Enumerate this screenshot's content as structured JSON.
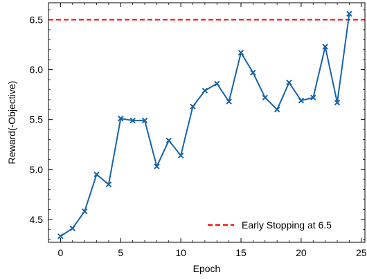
{
  "chart_data": {
    "type": "line",
    "xlabel": "Epoch",
    "ylabel": "Reward(-Objective)",
    "xlim": [
      -1,
      25.3
    ],
    "ylim": [
      4.27,
      6.67
    ],
    "xticks": [
      0,
      5,
      10,
      15,
      20,
      25
    ],
    "xtick_labels": [
      "0",
      "5",
      "10",
      "15",
      "20",
      "25"
    ],
    "yticks": [
      4.5,
      5.0,
      5.5,
      6.0,
      6.5
    ],
    "ytick_labels": [
      "4.5",
      "5.0",
      "5.5",
      "6.0",
      "6.5"
    ],
    "grid": false,
    "legend_position": "bottom-right",
    "series": [
      {
        "x": [
          0,
          1,
          2,
          3,
          4,
          5,
          6,
          7,
          8,
          9,
          10,
          11,
          12,
          13,
          14,
          15,
          16,
          17,
          18,
          19,
          20,
          21,
          22,
          23,
          24
        ],
        "values": [
          4.33,
          4.41,
          4.58,
          4.95,
          4.85,
          5.51,
          5.49,
          5.49,
          5.03,
          5.29,
          5.14,
          5.63,
          5.79,
          5.86,
          5.68,
          6.17,
          5.97,
          5.72,
          5.6,
          5.87,
          5.69,
          5.72,
          6.23,
          5.67,
          6.56
        ],
        "color": "#1763a8",
        "marker": "x"
      }
    ],
    "reference_line": {
      "y": 6.5,
      "name": "Early Stopping at 6.5",
      "color": "#ff0000",
      "style": "dashed"
    }
  }
}
